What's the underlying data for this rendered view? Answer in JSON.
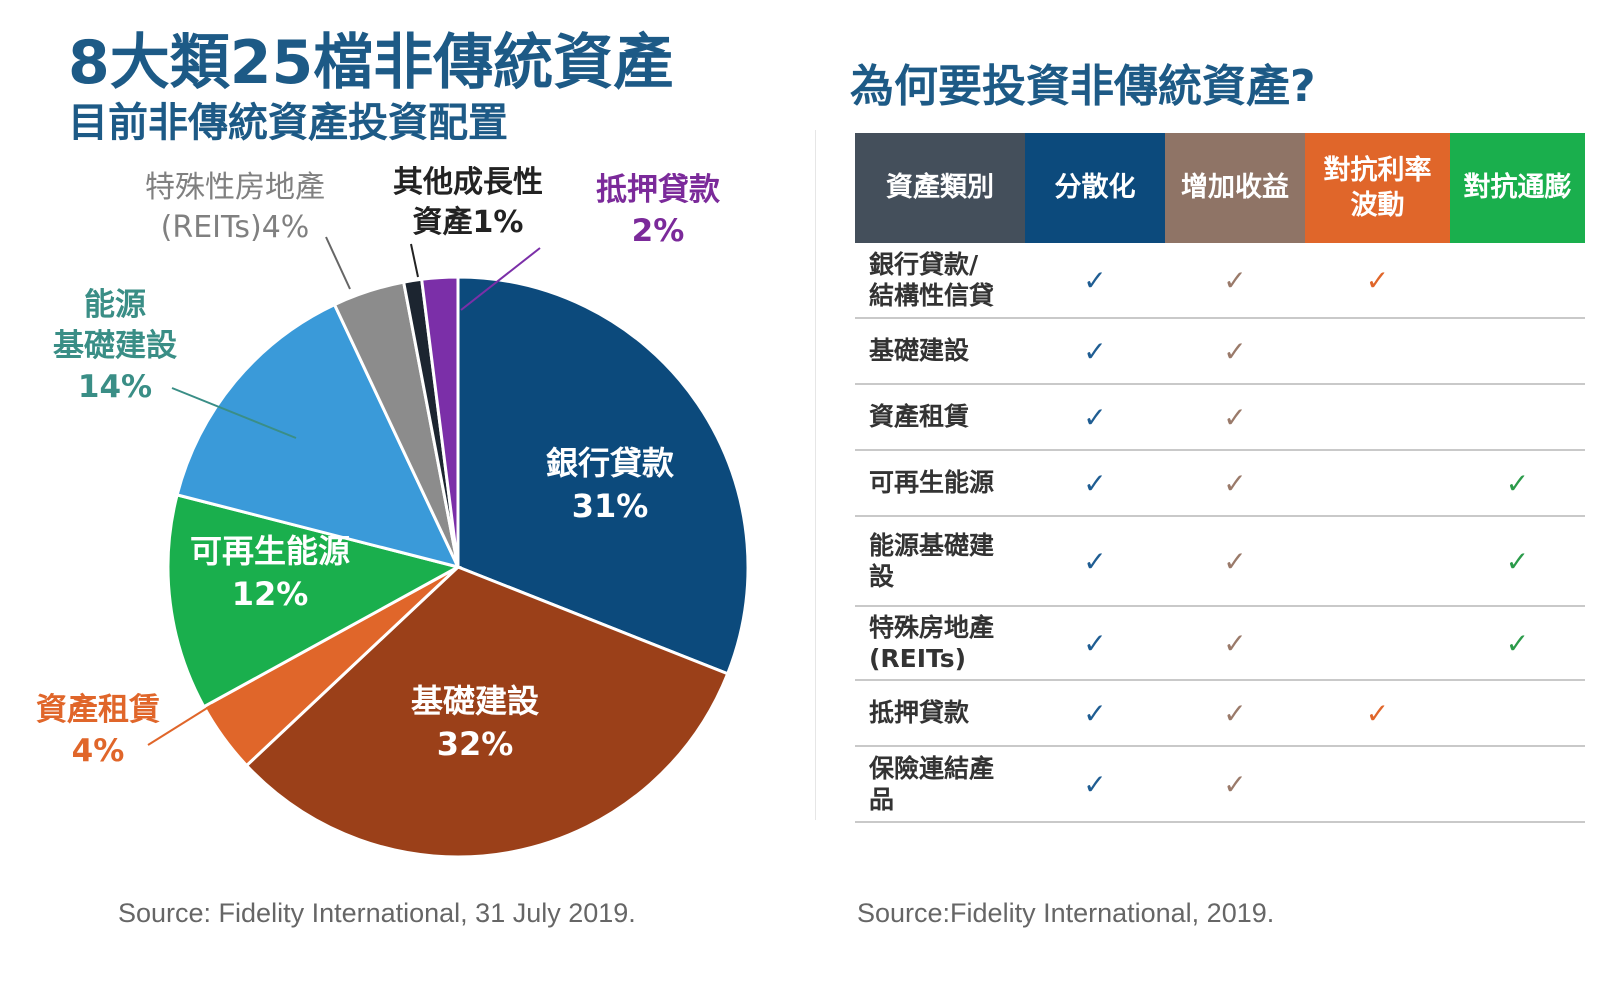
{
  "left": {
    "title": "8大類25檔非傳統資產",
    "subtitle": "目前非傳統資產投資配置",
    "source": "Source: Fidelity International, 31 July 2019."
  },
  "chart_data": {
    "type": "pie",
    "slices": [
      {
        "label": "銀行貸款",
        "value_text": "31%",
        "value": 31,
        "color": "#0c4a7c"
      },
      {
        "label": "基礎建設",
        "value_text": "32%",
        "value": 32,
        "color": "#9b4019"
      },
      {
        "label": "資產租賃",
        "value_text": "4%",
        "value": 4,
        "color": "#e0662a"
      },
      {
        "label": "可再生能源",
        "value_text": "12%",
        "value": 12,
        "color": "#1aaf4d"
      },
      {
        "label": "能源基礎建設",
        "label_lines": [
          "能源",
          "基礎建設"
        ],
        "value_text": "14%",
        "value": 14,
        "color": "#3a9ad9"
      },
      {
        "label": "特殊性房地產(REITs)",
        "label_lines": [
          "特殊性房地產",
          "(REITs)4%"
        ],
        "value_text": "4%",
        "value": 4,
        "color": "#8c8c8c"
      },
      {
        "label": "其他成長性資產",
        "label_lines": [
          "其他成長性",
          "資產1%"
        ],
        "value_text": "1%",
        "value": 1,
        "color": "#1c2530"
      },
      {
        "label": "抵押貸款",
        "value_text": "2%",
        "value": 2,
        "color": "#7b2fa8"
      }
    ]
  },
  "right": {
    "title": "為何要投資非傳統資產?",
    "source": "Source:Fidelity International, 2019.",
    "check_glyph": "✓",
    "columns": [
      {
        "label": "資產類別",
        "bg": "#444f5b"
      },
      {
        "label": "分散化",
        "bg": "#0c4a7c",
        "check_color": "#1f5d92"
      },
      {
        "label": "增加收益",
        "bg": "#8f7466",
        "check_color": "#9a7a6a"
      },
      {
        "label_lines": [
          "對抗利率",
          "波動"
        ],
        "bg": "#e0662a",
        "check_color": "#e0662a"
      },
      {
        "label": "對抗通膨",
        "bg": "#1aaf4d",
        "check_color": "#2b9b4a"
      }
    ],
    "rows": [
      {
        "name_lines": [
          "銀行貸款/",
          "結構性信貸"
        ],
        "checks": [
          true,
          true,
          true,
          false
        ]
      },
      {
        "name_lines": [
          "基礎建設"
        ],
        "checks": [
          true,
          true,
          false,
          false
        ]
      },
      {
        "name_lines": [
          "資產租賃"
        ],
        "checks": [
          true,
          true,
          false,
          false
        ]
      },
      {
        "name_lines": [
          "可再生能源"
        ],
        "checks": [
          true,
          true,
          false,
          true
        ]
      },
      {
        "name_lines": [
          "能源基礎建",
          "設"
        ],
        "checks": [
          true,
          true,
          false,
          true
        ]
      },
      {
        "name_lines": [
          "特殊房地產",
          "(REITs)"
        ],
        "checks": [
          true,
          true,
          false,
          true
        ]
      },
      {
        "name_lines": [
          "抵押貸款"
        ],
        "checks": [
          true,
          true,
          true,
          false
        ]
      },
      {
        "name_lines": [
          "保險連結產",
          "品"
        ],
        "checks": [
          true,
          true,
          false,
          false
        ]
      }
    ]
  }
}
